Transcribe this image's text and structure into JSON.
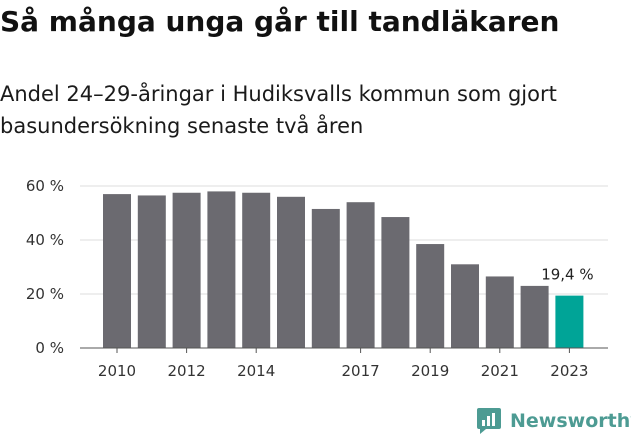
{
  "title": "Så många unga går till tandläkaren",
  "subtitle": "Andel 24–29-åringar i Hudiksvalls kommun som gjort basundersökning senaste två åren",
  "brand": {
    "name": "Newsworthy",
    "icon": "newsworthy-logo-icon",
    "color": "#4d9b93"
  },
  "chart_data": {
    "type": "bar",
    "categories": [
      "2010",
      "2011",
      "2012",
      "2013",
      "2014",
      "2015",
      "2016",
      "2017",
      "2018",
      "2019",
      "2020",
      "2021",
      "2022",
      "2023"
    ],
    "values": [
      57,
      56.5,
      57.5,
      58,
      57.5,
      56,
      51.5,
      54,
      48.5,
      38.5,
      31,
      26.5,
      23,
      19.4
    ],
    "x_tick_labels": [
      "2010",
      "",
      "2012",
      "",
      "2014",
      "",
      "",
      "2017",
      "",
      "2019",
      "",
      "2021",
      "",
      "2023"
    ],
    "y_ticks": [
      0,
      20,
      40,
      60
    ],
    "y_tick_labels": [
      "0 %",
      "20 %",
      "40 %",
      "60 %"
    ],
    "ylim": [
      0,
      60
    ],
    "annotation": {
      "category": "2023",
      "text": "19,4 %"
    },
    "colors": {
      "bar": "#6b6a70",
      "highlight": "#00a497",
      "grid": "#dddddd",
      "axis": "#555555",
      "tick_text": "#333333"
    },
    "grid": true,
    "xlabel": "",
    "ylabel": ""
  }
}
